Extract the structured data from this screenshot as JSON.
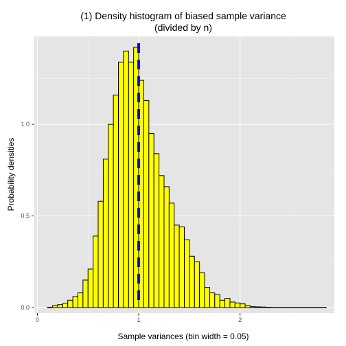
{
  "chart_data": {
    "type": "bar",
    "title_line1": "(1) Density histogram of biased sample variance",
    "title_line2": "(divided by n)",
    "xlabel": "Sample variances (bin width = 0.05)",
    "ylabel": "Probability densities",
    "bin_width": 0.05,
    "xlim": [
      -0.03,
      2.93
    ],
    "ylim": [
      -0.03,
      1.48
    ],
    "x_ticks": [
      {
        "value": 0,
        "label": "0"
      },
      {
        "value": 1,
        "label": "1"
      },
      {
        "value": 2,
        "label": "2"
      }
    ],
    "y_ticks": [
      {
        "value": 0,
        "label": "0.0"
      },
      {
        "value": 0.5,
        "label": "0.5"
      },
      {
        "value": 1.0,
        "label": "1.0"
      }
    ],
    "bin_lefts": [
      0.1,
      0.15,
      0.2,
      0.25,
      0.3,
      0.35,
      0.4,
      0.45,
      0.5,
      0.55,
      0.6,
      0.65,
      0.7,
      0.75,
      0.8,
      0.85,
      0.9,
      0.95,
      1.0,
      1.05,
      1.1,
      1.15,
      1.2,
      1.25,
      1.3,
      1.35,
      1.4,
      1.45,
      1.5,
      1.55,
      1.6,
      1.65,
      1.7,
      1.75,
      1.8,
      1.85,
      1.9,
      1.95,
      2.0,
      2.05,
      2.1,
      2.15,
      2.2,
      2.25,
      2.3,
      2.35,
      2.4,
      2.45,
      2.5,
      2.55,
      2.6,
      2.65,
      2.7,
      2.75,
      2.8
    ],
    "densities": [
      0.002,
      0.01,
      0.016,
      0.024,
      0.04,
      0.06,
      0.08,
      0.15,
      0.21,
      0.39,
      0.58,
      0.81,
      1.0,
      1.16,
      1.34,
      1.4,
      1.34,
      1.42,
      1.24,
      1.13,
      0.95,
      0.84,
      0.72,
      0.66,
      0.57,
      0.45,
      0.44,
      0.37,
      0.28,
      0.25,
      0.19,
      0.11,
      0.08,
      0.07,
      0.04,
      0.05,
      0.03,
      0.025,
      0.02,
      0.01,
      0.005,
      0.004,
      0.003,
      0.002,
      0.001,
      0.001,
      0.001,
      0.001,
      0.001,
      0.001,
      0.001,
      0.001,
      0.001,
      0.001,
      0.001
    ],
    "bar_fill": "#ffff00",
    "bar_outline": "#000000",
    "reference_line": {
      "x": 1.0,
      "color": "#0000ff",
      "style": "dashed"
    },
    "panel_background": "#e5e5e5",
    "grid": true,
    "grid_color": "#ffffff"
  }
}
